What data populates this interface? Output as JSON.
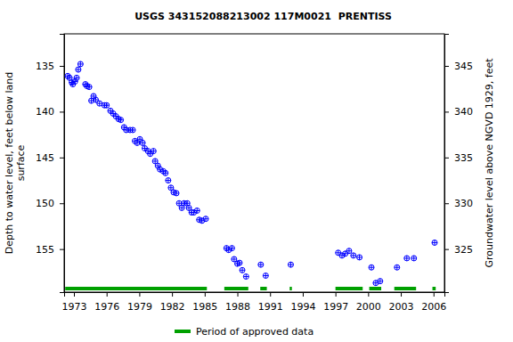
{
  "chart_data": {
    "type": "scatter",
    "title": "USGS 343152088213002 117M0021  PRENTISS",
    "y_label": [
      "Depth to water level, feet below land",
      "surface"
    ],
    "y2_label": "Groundwater level above NGVD 1929, feet",
    "xlim": [
      1972.1,
      2007.0
    ],
    "xticks": [
      1973,
      1976,
      1979,
      1982,
      1985,
      1988,
      1991,
      1994,
      1997,
      2000,
      2003,
      2006
    ],
    "ylim": [
      131.5,
      159.7
    ],
    "yticks": [
      135,
      140,
      145,
      150,
      155
    ],
    "y2lim": [
      348.5,
      320.3
    ],
    "y2ticks": [
      345,
      340,
      335,
      330,
      325
    ],
    "grid": false,
    "legend": "bottom",
    "series": [
      {
        "name": "Depth to water level",
        "color": "#0000ff",
        "marker": "circle_plus",
        "x": [
          1972.43,
          1972.6,
          1972.8,
          1972.9,
          1973.1,
          1973.25,
          1973.4,
          1973.6,
          1974.05,
          1974.2,
          1974.4,
          1974.6,
          1974.8,
          1975.0,
          1975.35,
          1975.8,
          1976.0,
          1976.35,
          1976.6,
          1976.85,
          1977.1,
          1977.3,
          1977.6,
          1977.8,
          1978.15,
          1978.4,
          1978.6,
          1978.8,
          1979.05,
          1979.3,
          1979.5,
          1979.8,
          1980.0,
          1980.3,
          1980.45,
          1980.7,
          1980.9,
          1981.2,
          1981.4,
          1981.65,
          1981.9,
          1982.15,
          1982.4,
          1982.65,
          1982.9,
          1983.1,
          1983.4,
          1983.55,
          1983.8,
          1984.0,
          1984.3,
          1984.5,
          1984.75,
          1985.1,
          1987.0,
          1987.2,
          1987.5,
          1987.7,
          1988.0,
          1988.2,
          1988.45,
          1988.8,
          1990.15,
          1990.6,
          1992.9,
          1997.25,
          1997.6,
          1997.9,
          1998.25,
          1998.65,
          1999.2,
          2000.3,
          2000.7,
          2001.1,
          2002.65,
          2003.55,
          2004.2,
          2006.1
        ],
        "values": [
          136.1,
          136.3,
          136.8,
          137.0,
          136.7,
          136.3,
          135.4,
          134.8,
          137.0,
          137.2,
          137.3,
          138.8,
          138.3,
          138.7,
          139.1,
          139.3,
          139.3,
          139.9,
          140.2,
          140.5,
          140.8,
          140.9,
          141.7,
          142.0,
          142.0,
          142.0,
          143.2,
          143.4,
          143.0,
          143.4,
          144.0,
          144.3,
          144.6,
          144.3,
          145.4,
          145.9,
          146.3,
          146.5,
          146.7,
          147.5,
          148.3,
          148.8,
          148.9,
          150.0,
          150.5,
          150.0,
          150.0,
          150.5,
          151.0,
          151.0,
          150.8,
          151.8,
          151.9,
          151.7,
          154.9,
          155.1,
          154.9,
          156.1,
          156.6,
          156.5,
          157.3,
          158.0,
          156.7,
          157.9,
          156.7,
          155.4,
          155.7,
          155.5,
          155.2,
          155.7,
          155.9,
          157.0,
          158.7,
          158.5,
          157.0,
          156.0,
          156.0,
          154.3
        ]
      }
    ],
    "approved": {
      "name": "Period of approved data",
      "color": "#00a000",
      "ranges": [
        [
          1972.2,
          1985.2
        ],
        [
          1986.8,
          1989.0
        ],
        [
          1990.1,
          1990.7
        ],
        [
          1992.8,
          1993.0
        ],
        [
          1997.0,
          1999.5
        ],
        [
          2000.1,
          2001.2
        ],
        [
          2002.4,
          2004.4
        ],
        [
          2005.9,
          2006.2
        ]
      ]
    }
  }
}
